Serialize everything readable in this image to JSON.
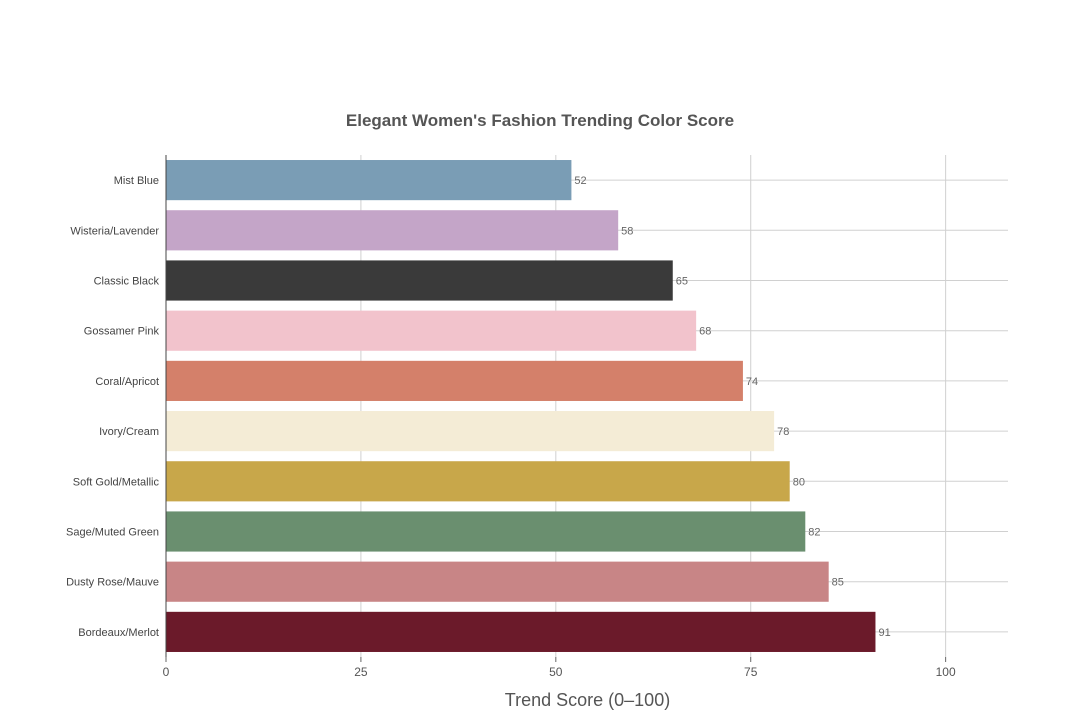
{
  "chart_data": {
    "type": "bar",
    "orientation": "horizontal",
    "title": "Elegant Women's Fashion Trending Color Score",
    "xlabel": "Trend Score (0–100)",
    "ylabel": "",
    "xlim": [
      0,
      108
    ],
    "xticks": [
      0,
      25,
      50,
      75,
      100
    ],
    "grid": true,
    "legend": "none",
    "categories": [
      "Mist Blue",
      "Wisteria/Lavender",
      "Classic Black",
      "Gossamer Pink",
      "Coral/Apricot",
      "Ivory/Cream",
      "Soft Gold/Metallic",
      "Sage/Muted Green",
      "Dusty Rose/Mauve",
      "Bordeaux/Merlot"
    ],
    "values": [
      52,
      58,
      65,
      68,
      74,
      78,
      80,
      82,
      85,
      91
    ],
    "colors": [
      "#7a9db5",
      "#c4a5c8",
      "#3a3a3a",
      "#f2c3cc",
      "#d4806a",
      "#f4ecd6",
      "#c8a74a",
      "#6a8f6f",
      "#c88586",
      "#6b1a2a"
    ]
  }
}
